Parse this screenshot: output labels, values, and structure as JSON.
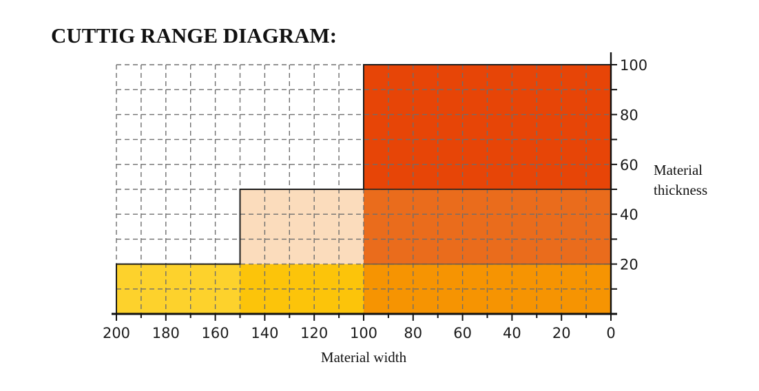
{
  "title": "CUTTIG RANGE DIAGRAM:",
  "chart_data": {
    "type": "area",
    "xlabel": "Material width",
    "ylabel": [
      "Material",
      "thickness"
    ],
    "xlim": [
      200,
      0
    ],
    "ylim": [
      0,
      100
    ],
    "x_ticks": [
      200,
      180,
      160,
      140,
      120,
      100,
      80,
      60,
      40,
      20,
      0
    ],
    "y_ticks": [
      20,
      40,
      60,
      80,
      100
    ],
    "grid": true,
    "regions": [
      {
        "x": [
          200,
          150
        ],
        "y": [
          0,
          20
        ],
        "color": "#fdd22c"
      },
      {
        "x": [
          150,
          100
        ],
        "y": [
          0,
          20
        ],
        "color": "#fcc40a"
      },
      {
        "x": [
          100,
          0
        ],
        "y": [
          0,
          20
        ],
        "color": "#f69402"
      },
      {
        "x": [
          150,
          100
        ],
        "y": [
          20,
          50
        ],
        "color": "#fbdcbc"
      },
      {
        "x": [
          100,
          0
        ],
        "y": [
          20,
          50
        ],
        "color": "#ea6c1c"
      },
      {
        "x": [
          100,
          0
        ],
        "y": [
          50,
          100
        ],
        "color": "#e74507"
      }
    ],
    "boundary": [
      [
        200,
        0
      ],
      [
        200,
        20
      ],
      [
        150,
        20
      ],
      [
        150,
        50
      ],
      [
        100,
        50
      ],
      [
        100,
        100
      ],
      [
        0,
        100
      ]
    ]
  }
}
